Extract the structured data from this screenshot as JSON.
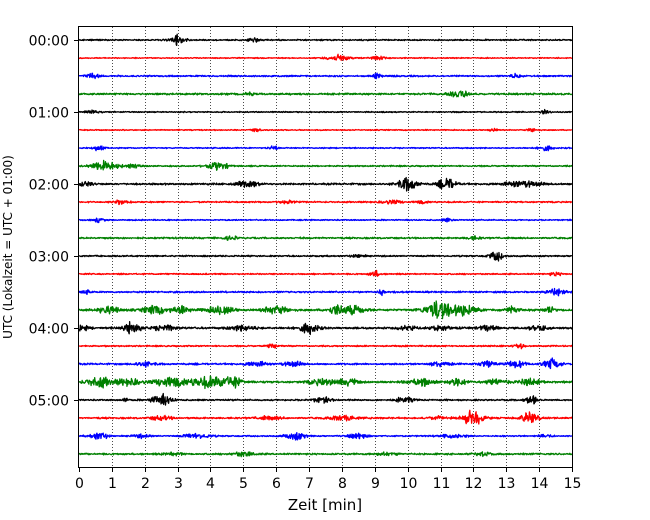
{
  "chart_data": {
    "type": "line",
    "subtype": "helicorder",
    "title": "",
    "xlabel": "Zeit  [min]",
    "ylabel": "UTC (Lokalzeit = UTC + 01:00)",
    "xlim": [
      0,
      15
    ],
    "x_ticks": [
      0,
      1,
      2,
      3,
      4,
      5,
      6,
      7,
      8,
      9,
      10,
      11,
      12,
      13,
      14,
      15
    ],
    "grid": "vertical dotted lines at each minute",
    "row_interval_min": 15,
    "row_labels": [
      "00:00",
      "01:00",
      "02:00",
      "03:00",
      "04:00",
      "05:00"
    ],
    "row_label_every": 4,
    "colors": [
      "#000000",
      "#ff0000",
      "#0000ff",
      "#008000"
    ],
    "base_noise": [
      0.9,
      0.7,
      1.0,
      1.2,
      0.8,
      0.7,
      0.8,
      0.9,
      1.2,
      1.0,
      0.8,
      1.1,
      1.0,
      0.9,
      1.1,
      1.4,
      1.3,
      0.9,
      1.1,
      1.3,
      1.0,
      1.1,
      0.9,
      1.1
    ],
    "events": [
      [
        [
          3.0,
          6,
          0.25
        ],
        [
          5.3,
          3,
          0.15
        ]
      ],
      [
        [
          7.9,
          4,
          0.35
        ],
        [
          9.1,
          3,
          0.2
        ]
      ],
      [
        [
          0.4,
          3,
          0.2
        ],
        [
          9.1,
          3,
          0.15
        ],
        [
          13.3,
          3,
          0.15
        ]
      ],
      [
        [
          11.6,
          4,
          0.3
        ],
        [
          5.2,
          2,
          0.15
        ]
      ],
      [
        [
          14.2,
          3,
          0.12
        ],
        [
          0.4,
          2,
          0.2
        ]
      ],
      [
        [
          5.4,
          3,
          0.15
        ],
        [
          13.8,
          3,
          0.15
        ],
        [
          12.6,
          2,
          0.15
        ]
      ],
      [
        [
          0.6,
          3,
          0.2
        ],
        [
          14.2,
          3,
          0.2
        ],
        [
          5.9,
          2,
          0.15
        ]
      ],
      [
        [
          0.8,
          6,
          0.4
        ],
        [
          4.2,
          5,
          0.3
        ],
        [
          1.6,
          3,
          0.2
        ]
      ],
      [
        [
          10.0,
          8,
          0.3
        ],
        [
          11.2,
          7,
          0.25
        ],
        [
          5.1,
          4,
          0.35
        ],
        [
          13.5,
          4,
          0.5
        ],
        [
          0.2,
          3,
          0.2
        ]
      ],
      [
        [
          1.3,
          3,
          0.2
        ],
        [
          6.3,
          2,
          0.2
        ],
        [
          9.5,
          2,
          0.3
        ],
        [
          10.4,
          2,
          0.2
        ]
      ],
      [
        [
          0.6,
          3,
          0.15
        ],
        [
          11.2,
          2,
          0.15
        ]
      ],
      [
        [
          4.6,
          2,
          0.2
        ],
        [
          12.0,
          2,
          0.2
        ]
      ],
      [
        [
          12.7,
          6,
          0.2
        ],
        [
          8.5,
          2,
          0.2
        ]
      ],
      [
        [
          9.0,
          4,
          0.15
        ],
        [
          14.5,
          2,
          0.2
        ]
      ],
      [
        [
          14.5,
          4,
          0.25
        ],
        [
          9.2,
          4,
          0.08
        ],
        [
          0.2,
          2,
          0.2
        ]
      ],
      [
        [
          11.0,
          10,
          0.3
        ],
        [
          11.7,
          7,
          0.4
        ],
        [
          2.3,
          6,
          0.3
        ],
        [
          6.0,
          6,
          0.35
        ],
        [
          8.3,
          6,
          0.35
        ],
        [
          0.9,
          5,
          0.3
        ],
        [
          7.8,
          5,
          0.2
        ],
        [
          4.3,
          5,
          0.4
        ],
        [
          3.1,
          4,
          0.3
        ],
        [
          10.7,
          4,
          0.3
        ],
        [
          13.2,
          4,
          0.2
        ],
        [
          14.3,
          4,
          0.2
        ]
      ],
      [
        [
          1.6,
          6,
          0.3
        ],
        [
          7.0,
          7,
          0.25
        ],
        [
          2.6,
          4,
          0.3
        ],
        [
          5.0,
          3,
          0.4
        ],
        [
          10.0,
          3,
          0.3
        ],
        [
          11.0,
          3,
          0.3
        ],
        [
          12.4,
          3,
          0.3
        ],
        [
          14.0,
          3,
          0.3
        ],
        [
          0.1,
          3,
          0.2
        ]
      ],
      [
        [
          5.9,
          3,
          0.15
        ],
        [
          13.4,
          3,
          0.15
        ]
      ],
      [
        [
          14.4,
          7,
          0.25
        ],
        [
          12.4,
          4,
          0.25
        ],
        [
          2.0,
          3,
          0.3
        ],
        [
          5.4,
          3,
          0.3
        ],
        [
          6.5,
          3,
          0.3
        ],
        [
          11.0,
          3,
          0.3
        ],
        [
          13.3,
          4,
          0.3
        ]
      ],
      [
        [
          0.6,
          7,
          0.35
        ],
        [
          2.8,
          8,
          0.4
        ],
        [
          4.1,
          7,
          0.4
        ],
        [
          4.7,
          6,
          0.3
        ],
        [
          1.5,
          4,
          0.4
        ],
        [
          3.6,
          4,
          0.3
        ],
        [
          7.4,
          4,
          0.4
        ],
        [
          8.2,
          4,
          0.3
        ],
        [
          10.4,
          4,
          0.4
        ],
        [
          11.5,
          4,
          0.3
        ],
        [
          12.7,
          4,
          0.3
        ],
        [
          13.7,
          4,
          0.3
        ]
      ],
      [
        [
          1.4,
          6,
          0.05
        ],
        [
          2.5,
          7,
          0.3
        ],
        [
          13.8,
          5,
          0.2
        ],
        [
          7.4,
          3,
          0.3
        ],
        [
          9.9,
          3,
          0.3
        ]
      ],
      [
        [
          12.0,
          10,
          0.3
        ],
        [
          13.7,
          8,
          0.25
        ],
        [
          2.5,
          3,
          0.3
        ],
        [
          8.0,
          3,
          0.4
        ],
        [
          5.8,
          2,
          0.4
        ],
        [
          10.9,
          2,
          0.3
        ]
      ],
      [
        [
          0.6,
          5,
          0.25
        ],
        [
          6.6,
          5,
          0.3
        ],
        [
          3.6,
          3,
          0.4
        ],
        [
          1.9,
          2,
          0.3
        ],
        [
          8.5,
          3,
          0.3
        ],
        [
          11.4,
          2,
          0.4
        ],
        [
          14.2,
          2,
          0.2
        ]
      ],
      [
        [
          5.0,
          3,
          0.3
        ],
        [
          2.9,
          2,
          0.3
        ],
        [
          9.4,
          2,
          0.3
        ],
        [
          12.3,
          2,
          0.3
        ]
      ]
    ]
  }
}
